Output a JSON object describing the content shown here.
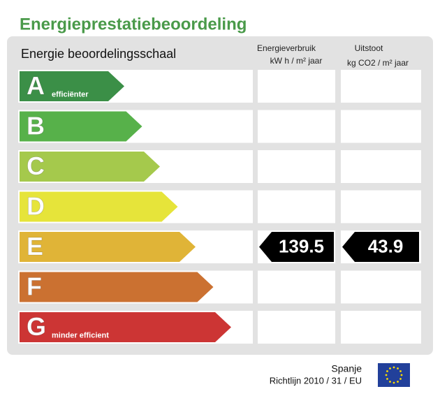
{
  "title": "Energieprestatiebeoordeling",
  "scale_label": "Energie beoordelingsschaal",
  "columns": [
    {
      "name": "Energieverbruik",
      "unit": "kW h / m² jaar"
    },
    {
      "name": "Uitstoot",
      "unit": "kg CO2 / m² jaar"
    }
  ],
  "rows": [
    {
      "letter": "A",
      "sublabel": "efficiënter",
      "color": "#3b8f47"
    },
    {
      "letter": "B",
      "color": "#57b14a"
    },
    {
      "letter": "C",
      "color": "#a5c94c"
    },
    {
      "letter": "D",
      "color": "#e6e43a"
    },
    {
      "letter": "E",
      "color": "#e0b437",
      "consumption": 139.5,
      "emission": 43.9
    },
    {
      "letter": "F",
      "color": "#cb7131"
    },
    {
      "letter": "G",
      "sublabel": "minder efficient",
      "color": "#cc3534"
    }
  ],
  "footer": {
    "country": "Spanje",
    "directive": "Richtlijn 2010 / 31 / EU"
  }
}
